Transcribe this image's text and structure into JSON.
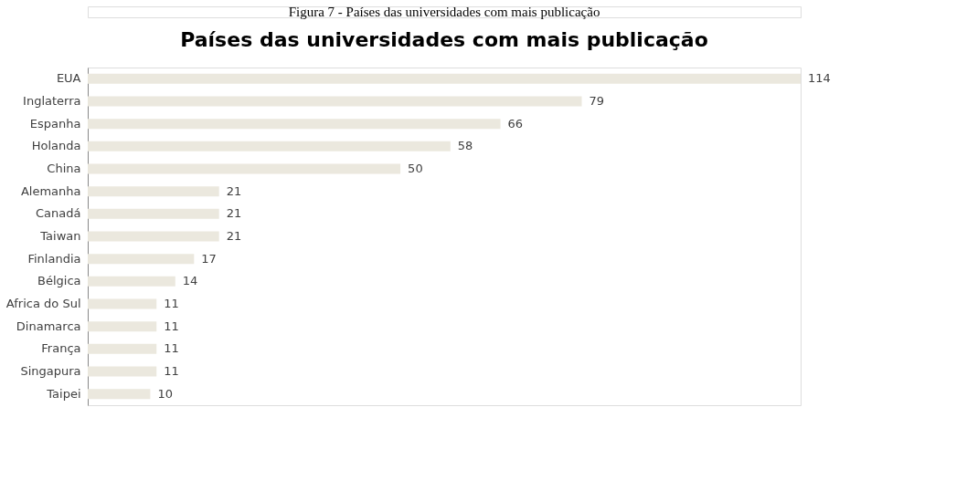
{
  "chart_data": {
    "type": "bar",
    "orientation": "horizontal",
    "title": "Países das universidades com mais publicação",
    "annotations": [
      "Figura 7 - Países das universidades com mais publicação"
    ],
    "categories": [
      "EUA",
      "Inglaterra",
      "Espanha",
      "Holanda",
      "China",
      "Alemanha",
      "Canadá",
      "Taiwan",
      "Finlandia",
      "Bélgica",
      "Africa do Sul",
      "Dinamarca",
      "França",
      "Singapura",
      "Taipei"
    ],
    "values": [
      114,
      79,
      66,
      58,
      50,
      21,
      21,
      21,
      17,
      14,
      11,
      11,
      11,
      11,
      10
    ],
    "color": "#ebe8de",
    "data_labels": true
  }
}
